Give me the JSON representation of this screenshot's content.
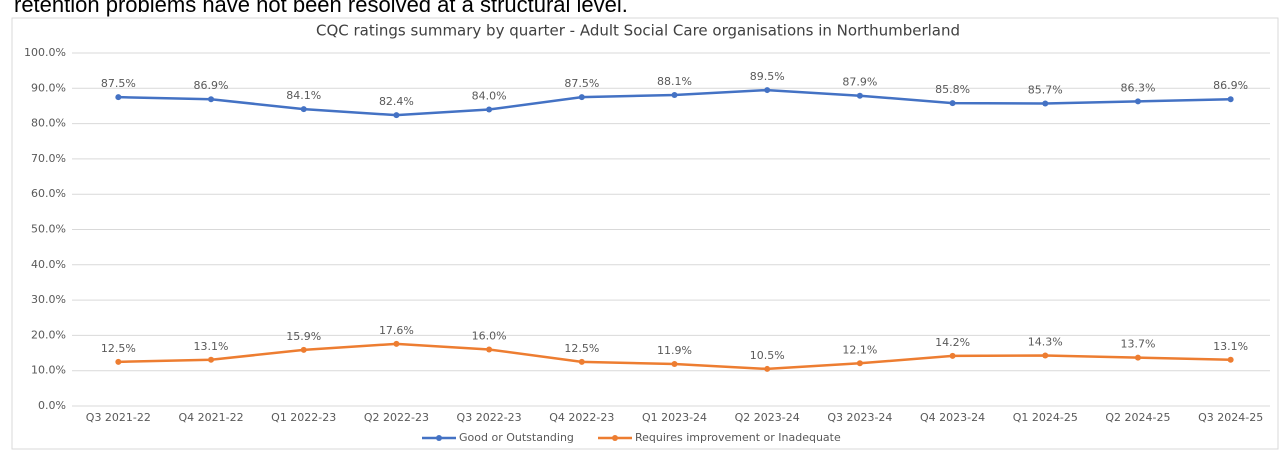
{
  "header_text": "retention problems have not been resolved at a structural level.",
  "chart_data": {
    "type": "line",
    "title": "CQC ratings summary by quarter - Adult Social Care organisations in Northumberland",
    "categories": [
      "Q3 2021-22",
      "Q4 2021-22",
      "Q1 2022-23",
      "Q2 2022-23",
      "Q3 2022-23",
      "Q4 2022-23",
      "Q1 2023-24",
      "Q2 2023-24",
      "Q3 2023-24",
      "Q4 2023-24",
      "Q1 2024-25",
      "Q2 2024-25",
      "Q3 2024-25"
    ],
    "series": [
      {
        "name": "Good or Outstanding",
        "color": "#4472c4",
        "values": [
          87.5,
          86.9,
          84.1,
          82.4,
          84.0,
          87.5,
          88.1,
          89.5,
          87.9,
          85.8,
          85.7,
          86.3,
          86.9
        ],
        "value_labels": [
          "87.5%",
          "86.9%",
          "84.1%",
          "82.4%",
          "84.0%",
          "87.5%",
          "88.1%",
          "89.5%",
          "87.9%",
          "85.8%",
          "85.7%",
          "86.3%",
          "86.9%"
        ]
      },
      {
        "name": "Requires improvement or Inadequate",
        "color": "#ed7d31",
        "values": [
          12.5,
          13.1,
          15.9,
          17.6,
          16.0,
          12.5,
          11.9,
          10.5,
          12.1,
          14.2,
          14.3,
          13.7,
          13.1
        ],
        "value_labels": [
          "12.5%",
          "13.1%",
          "15.9%",
          "17.6%",
          "16.0%",
          "12.5%",
          "11.9%",
          "10.5%",
          "12.1%",
          "14.2%",
          "14.3%",
          "13.7%",
          "13.1%"
        ]
      }
    ],
    "ylim": [
      0,
      100
    ],
    "yticks": [
      {
        "value": 0,
        "label": "0.0%"
      },
      {
        "value": 10,
        "label": "10.0%"
      },
      {
        "value": 20,
        "label": "20.0%"
      },
      {
        "value": 30,
        "label": "30.0%"
      },
      {
        "value": 40,
        "label": "40.0%"
      },
      {
        "value": 50,
        "label": "50.0%"
      },
      {
        "value": 60,
        "label": "60.0%"
      },
      {
        "value": 70,
        "label": "70.0%"
      },
      {
        "value": 80,
        "label": "80.0%"
      },
      {
        "value": 90,
        "label": "90.0%"
      },
      {
        "value": 100,
        "label": "100.0%"
      }
    ],
    "grid": true,
    "legend": "bottom"
  }
}
